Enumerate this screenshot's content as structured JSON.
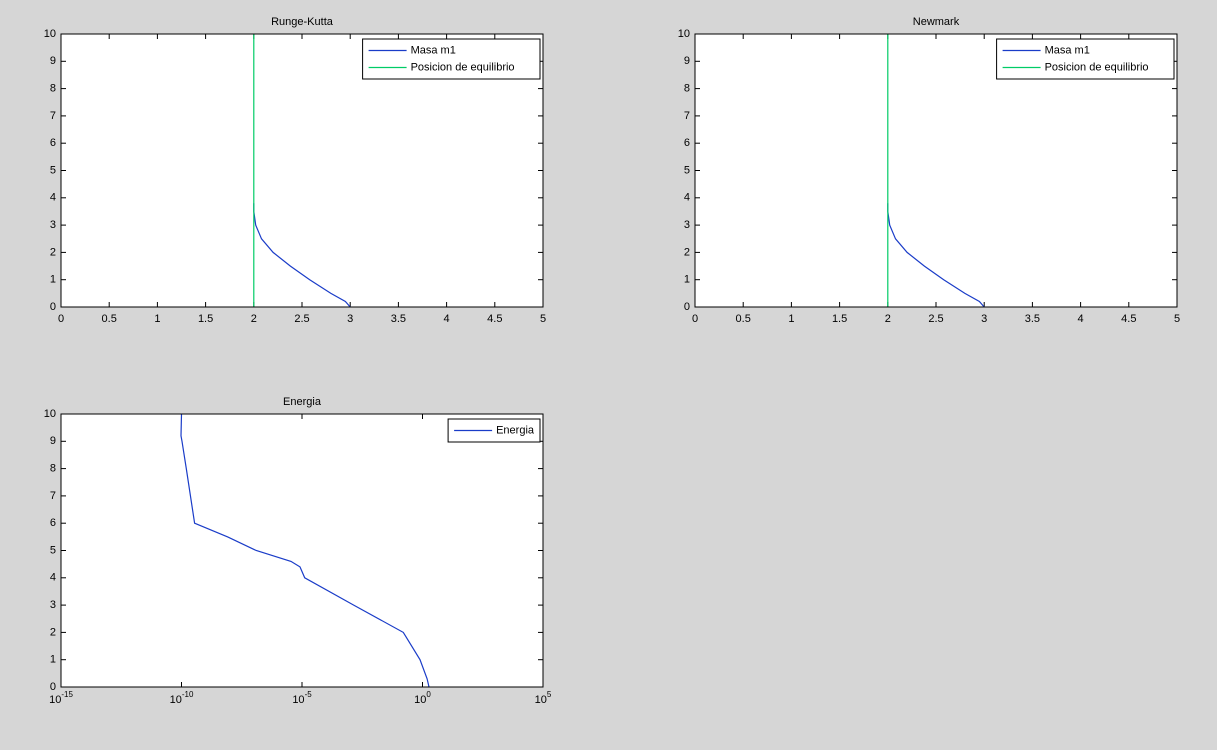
{
  "chart_data": [
    {
      "type": "line",
      "title": "Runge-Kutta",
      "legend": "northeast",
      "grid": false,
      "xscale": "linear",
      "xlim": [
        0,
        5
      ],
      "ylim": [
        0,
        10
      ],
      "xticks": [
        0,
        0.5,
        1,
        1.5,
        2,
        2.5,
        3,
        3.5,
        4,
        4.5,
        5
      ],
      "yticks": [
        0,
        1,
        2,
        3,
        4,
        5,
        6,
        7,
        8,
        9,
        10
      ],
      "series": [
        {
          "name": "Masa m1",
          "color": "#1a3cc8",
          "x": [
            3.0,
            2.95,
            2.8,
            2.58,
            2.38,
            2.2,
            2.08,
            2.02,
            2.0,
            2.0
          ],
          "values": [
            0,
            0.2,
            0.5,
            1,
            1.5,
            2,
            2.5,
            3,
            3.5,
            3.8
          ]
        },
        {
          "name": "Posicion de equilibrio",
          "color": "#00cc66",
          "x": [
            2,
            2
          ],
          "values": [
            0,
            10
          ]
        }
      ]
    },
    {
      "type": "line",
      "title": "Newmark",
      "legend": "northeast",
      "grid": false,
      "xscale": "linear",
      "xlim": [
        0,
        5
      ],
      "ylim": [
        0,
        10
      ],
      "xticks": [
        0,
        0.5,
        1,
        1.5,
        2,
        2.5,
        3,
        3.5,
        4,
        4.5,
        5
      ],
      "yticks": [
        0,
        1,
        2,
        3,
        4,
        5,
        6,
        7,
        8,
        9,
        10
      ],
      "series": [
        {
          "name": "Masa m1",
          "color": "#1a3cc8",
          "x": [
            3.0,
            2.95,
            2.8,
            2.58,
            2.38,
            2.2,
            2.08,
            2.02,
            2.0,
            2.0
          ],
          "values": [
            0,
            0.2,
            0.5,
            1,
            1.5,
            2,
            2.5,
            3,
            3.5,
            3.8
          ]
        },
        {
          "name": "Posicion de equilibrio",
          "color": "#00cc66",
          "x": [
            2,
            2
          ],
          "values": [
            0,
            10
          ]
        }
      ]
    },
    {
      "type": "line",
      "title": "Energia",
      "legend": "northeast",
      "grid": false,
      "xscale": "log",
      "xlim": [
        1e-15,
        100000
      ],
      "ylim": [
        0,
        10
      ],
      "xticks": [
        {
          "value": 1e-15,
          "label": "10-15"
        },
        {
          "value": 1e-10,
          "label": "10-10"
        },
        {
          "value": 1e-05,
          "label": "10-5"
        },
        {
          "value": 1,
          "label": "100"
        },
        {
          "value": 100000,
          "label": "105"
        }
      ],
      "yticks": [
        0,
        1,
        2,
        3,
        4,
        5,
        6,
        7,
        8,
        9,
        10
      ],
      "series": [
        {
          "name": "Energia",
          "color": "#1a3cc8",
          "x": [
            1.86,
            1.55,
            0.79,
            0.16,
            0.0014,
            1.3e-05,
            8.3e-06,
            3.5e-06,
            1.26e-07,
            8.3e-09,
            3.5e-10,
            1.58e-10,
            1.05e-10,
            9.5e-11,
            1e-10
          ],
          "values": [
            0,
            0.3,
            1,
            2,
            3,
            4,
            4.4,
            4.6,
            5,
            5.5,
            6,
            8,
            9,
            9.2,
            10
          ]
        }
      ]
    }
  ]
}
